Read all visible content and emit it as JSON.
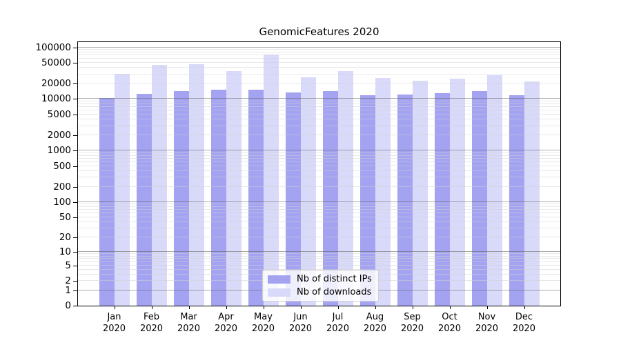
{
  "chart_data": {
    "type": "bar",
    "title": "GenomicFeatures 2020",
    "categories": [
      "Jan",
      "Feb",
      "Mar",
      "Apr",
      "May",
      "Jun",
      "Jul",
      "Aug",
      "Sep",
      "Oct",
      "Nov",
      "Dec"
    ],
    "category_year_line": "2020",
    "series": [
      {
        "name": "Nb of distinct IPs",
        "color": "#a3a3f2",
        "values": [
          10500,
          12700,
          14200,
          15300,
          15000,
          13400,
          14400,
          11700,
          12300,
          13100,
          14200,
          12000
        ]
      },
      {
        "name": "Nb of downloads",
        "color": "#d9d9f9",
        "values": [
          31000,
          46300,
          46800,
          34400,
          73000,
          26400,
          34800,
          25300,
          22800,
          24800,
          28900,
          21900
        ]
      }
    ],
    "xlabel": "",
    "ylabel": "",
    "yscale": "log10(value+1), linear zero at baseline",
    "ylim": [
      0,
      125000
    ],
    "y_ticks": [
      0,
      1,
      2,
      5,
      10,
      20,
      50,
      100,
      200,
      500,
      1000,
      2000,
      5000,
      10000,
      20000,
      50000,
      100000
    ],
    "grid": {
      "horizontal_major": true,
      "horizontal_minor": true,
      "vertical": false
    },
    "legend_position": "lower center"
  },
  "colors": {
    "background": "#ffffff",
    "spine": "#000000",
    "grid_major": "#a9a9a9",
    "grid_minor": "#ececec",
    "text": "#000000",
    "legend_border": "#cfcfcf"
  }
}
